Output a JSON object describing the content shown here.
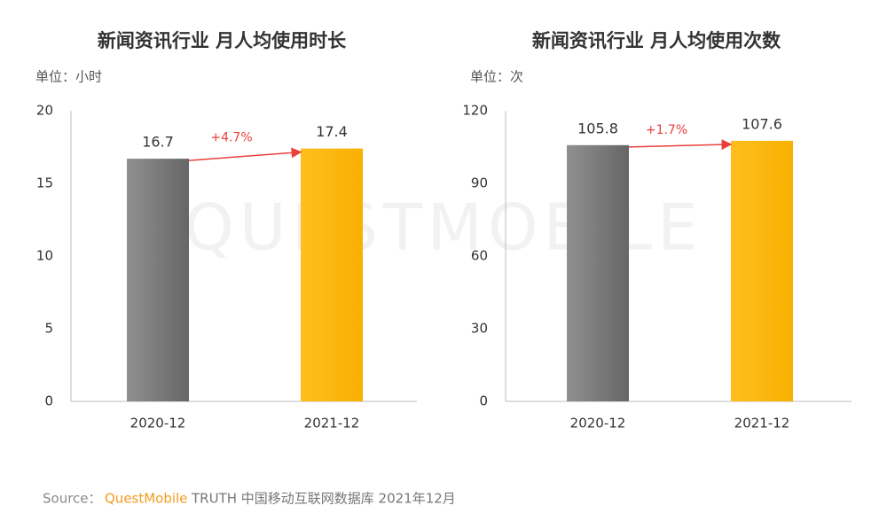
{
  "chart_data": [
    {
      "type": "bar",
      "title": "新闻资讯行业 月人均使用时长",
      "unit_label": "单位：小时",
      "categories": [
        "2020-12",
        "2021-12"
      ],
      "values": [
        16.7,
        17.4
      ],
      "colors": [
        "#7b7b7b",
        "#fdb813"
      ],
      "annotation": "+4.7%",
      "ylim": [
        0,
        20
      ],
      "yticks": [
        0,
        5,
        10,
        15,
        20
      ]
    },
    {
      "type": "bar",
      "title": "新闻资讯行业 月人均使用次数",
      "unit_label": "单位：次",
      "categories": [
        "2020-12",
        "2021-12"
      ],
      "values": [
        105.8,
        107.6
      ],
      "colors": [
        "#7b7b7b",
        "#fdb813"
      ],
      "annotation": "+1.7%",
      "ylim": [
        0,
        120
      ],
      "yticks": [
        0,
        30,
        60,
        90,
        120
      ]
    }
  ],
  "watermark": "QUESTMOBILE",
  "source": {
    "label": "Source：",
    "brand": "QuestMobile",
    "text": "TRUTH 中国移动互联网数据库 2021年12月"
  }
}
